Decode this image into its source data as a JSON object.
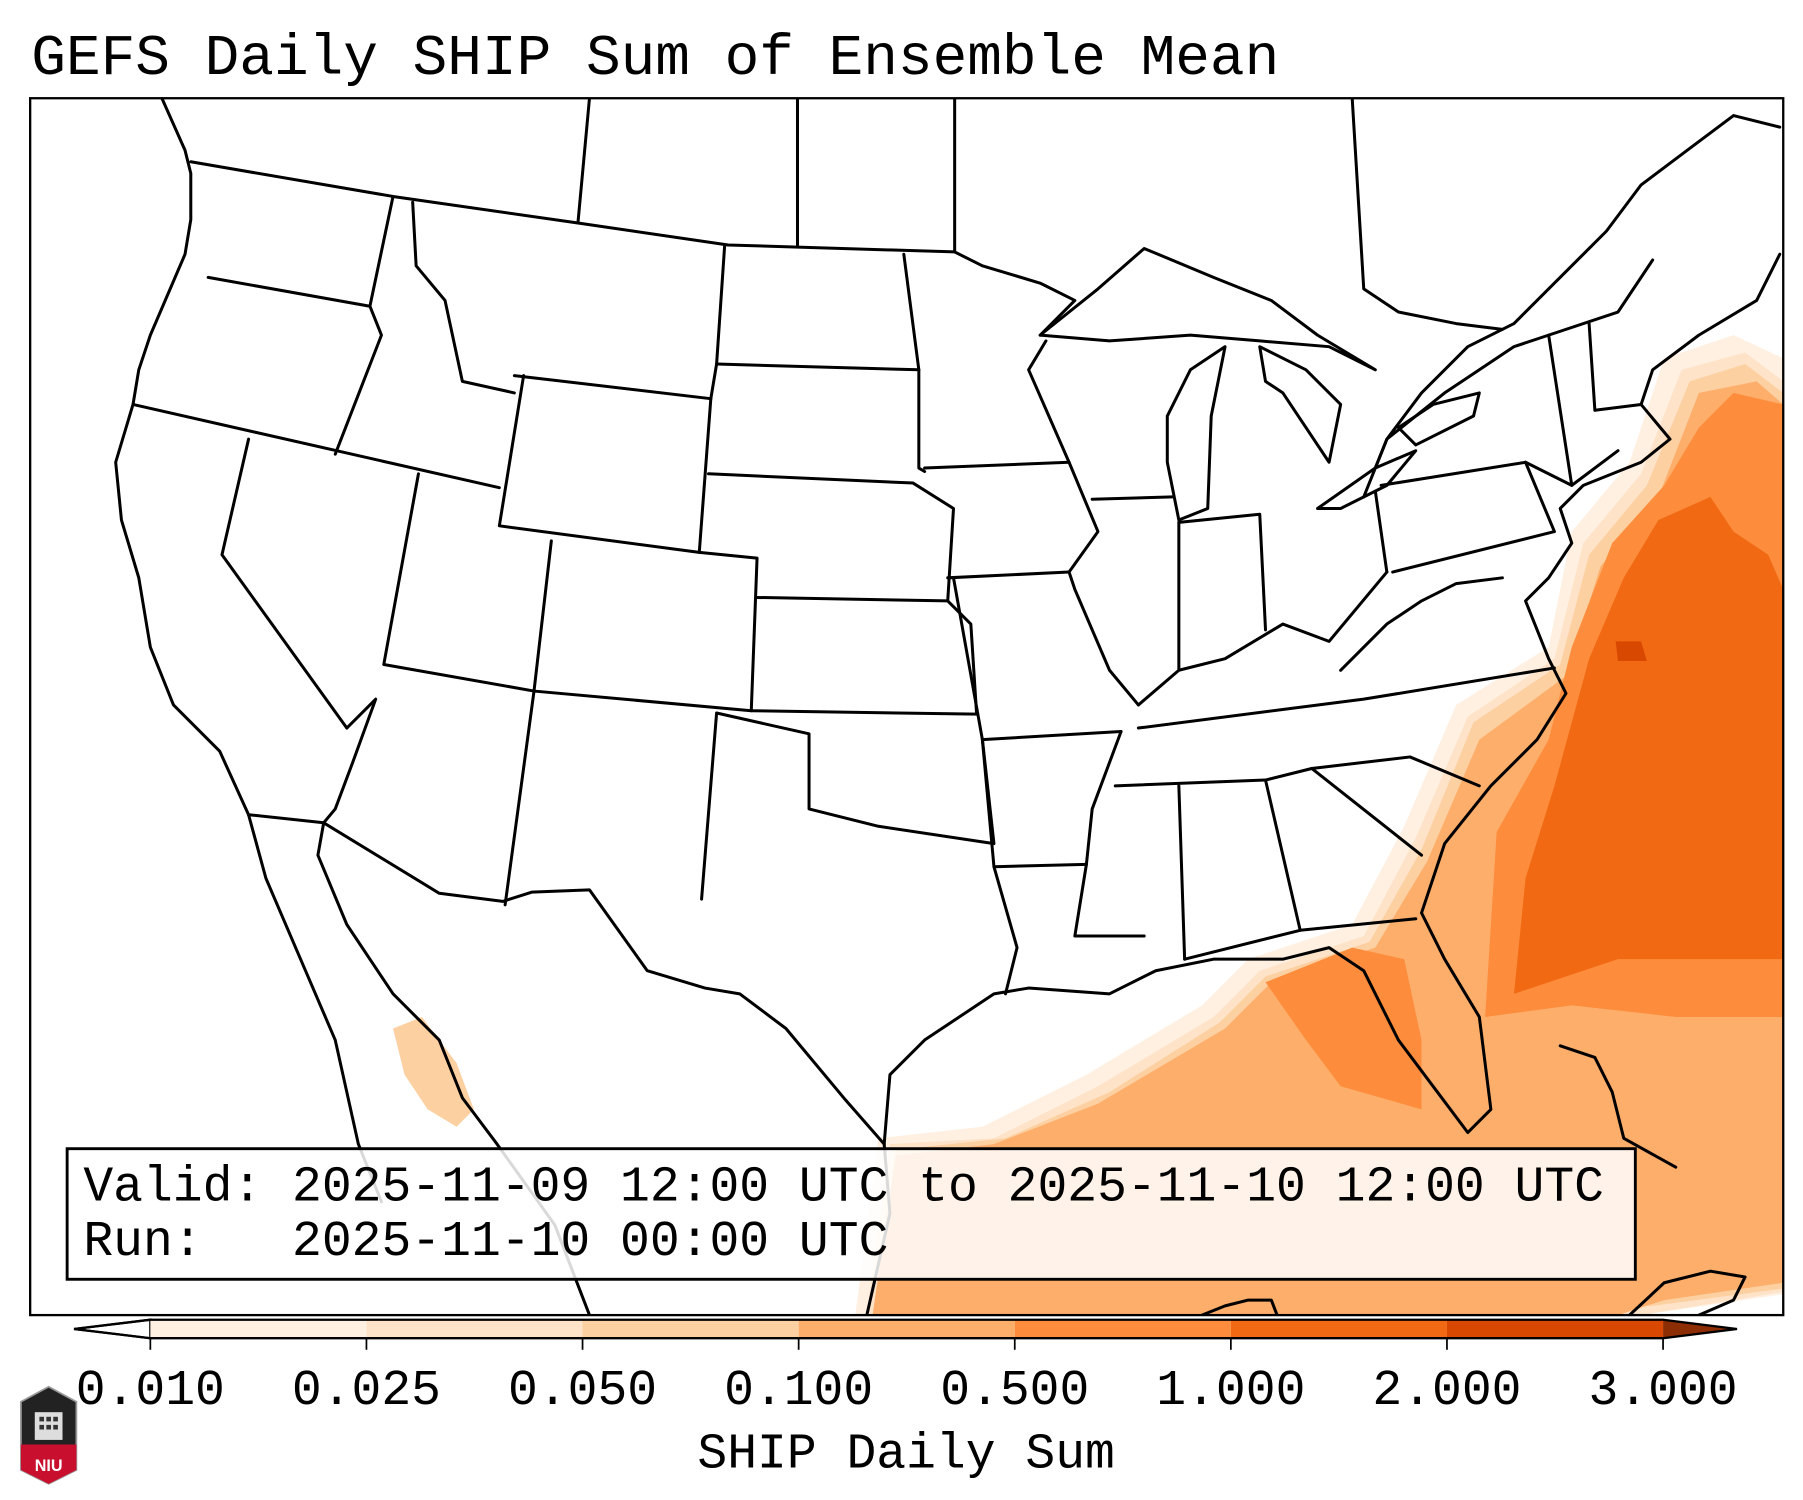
{
  "title": "GEFS Daily SHIP Sum of Ensemble Mean",
  "info_box": {
    "valid_line": "Valid: 2025-11-09 12:00 UTC to 2025-11-10 12:00 UTC",
    "run_line": "Run:   2025-11-10 00:00 UTC"
  },
  "colorbar": {
    "label": "SHIP Daily Sum",
    "ticks": [
      "0.010",
      "0.025",
      "0.050",
      "0.100",
      "0.500",
      "1.000",
      "2.000",
      "3.000"
    ],
    "colors": [
      "#ffffff",
      "#fff0e2",
      "#fee3c8",
      "#fdd0a2",
      "#fdae6b",
      "#fd8d3c",
      "#f16913",
      "#d94801",
      "#8c2d04"
    ],
    "extend": "both"
  },
  "logo": {
    "text": "NIU"
  }
}
